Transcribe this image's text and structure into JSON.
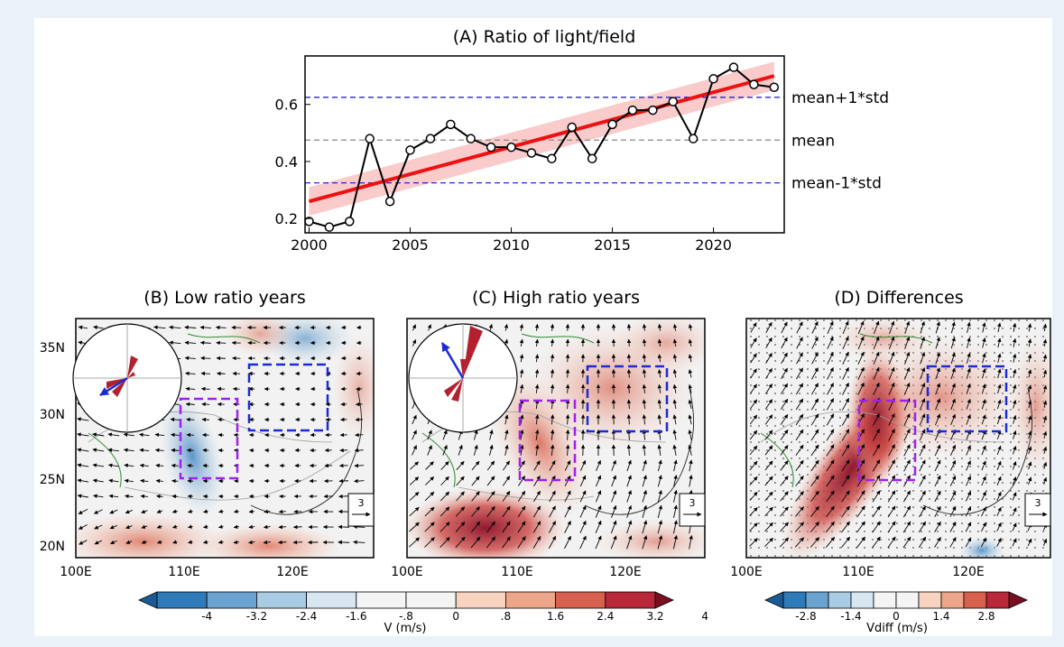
{
  "chart_data": [
    {
      "type": "line",
      "title": "(A) Ratio of light/field",
      "xlabel": "",
      "ylabel": "",
      "x": [
        2000,
        2001,
        2002,
        2003,
        2004,
        2005,
        2006,
        2007,
        2008,
        2009,
        2010,
        2011,
        2012,
        2013,
        2014,
        2015,
        2016,
        2017,
        2018,
        2019,
        2020,
        2021,
        2022,
        2023
      ],
      "series": [
        {
          "values": [
            0.19,
            0.17,
            0.19,
            0.48,
            0.26,
            0.44,
            0.48,
            0.53,
            0.48,
            0.45,
            0.45,
            0.43,
            0.41,
            0.52,
            0.41,
            0.53,
            0.58,
            0.58,
            0.61,
            0.48,
            0.69,
            0.73,
            0.67,
            0.66
          ]
        }
      ],
      "trend": {
        "start": [
          2000,
          0.26
        ],
        "end": [
          2023,
          0.7
        ]
      },
      "ref_lines": [
        {
          "label": "mean+1*std",
          "value": 0.625,
          "color": "#1010cc"
        },
        {
          "label": "mean",
          "value": 0.475,
          "color": "#888888"
        },
        {
          "label": "mean-1*std",
          "value": 0.325,
          "color": "#1010cc"
        }
      ],
      "xticks": [
        "2000",
        "2005",
        "2010",
        "2015",
        "2020"
      ],
      "xtick_values": [
        2000,
        2005,
        2010,
        2015,
        2020
      ],
      "yticks": [
        "0.2",
        "0.4",
        "0.6"
      ],
      "ytick_values": [
        0.2,
        0.4,
        0.6
      ],
      "xlim": [
        1999.8,
        2023.5
      ],
      "ylim": [
        0.15,
        0.77
      ],
      "colors": {
        "line": "#000000",
        "trend": "#ee1111",
        "band": "#f7b9b9"
      }
    },
    {
      "type": "heatmap",
      "title": "(B) Low ratio years",
      "lon_ticks": [
        "100E",
        "110E",
        "120E"
      ],
      "lat_ticks": [
        "35N",
        "30N",
        "25N",
        "20N"
      ],
      "ref_vector": "3",
      "wind_rose_arrow": "west-southwest"
    },
    {
      "type": "heatmap",
      "title": "(C) High ratio years",
      "lon_ticks": [
        "100E",
        "110E",
        "120E"
      ],
      "ref_vector": "3",
      "wind_rose_arrow": "north-northwest"
    },
    {
      "type": "heatmap",
      "title": "(D) Differences",
      "lon_ticks": [
        "100E",
        "110E",
        "120E"
      ],
      "ref_vector": "3"
    }
  ],
  "colorbars": [
    {
      "label": "V (m/s)",
      "ticks": [
        "-4",
        "-3.2",
        "-2.4",
        "-1.6",
        "-.8",
        "0",
        ".8",
        "1.6",
        "2.4",
        "3.2",
        "4"
      ],
      "colors": [
        "#1a5b95",
        "#2f7ab8",
        "#6aa3cf",
        "#a9cbe3",
        "#d7e6f0",
        "#f4f4f4",
        "#f4f4f4",
        "#f8d3c0",
        "#eda68a",
        "#d8604e",
        "#b8283a",
        "#7a0f22"
      ]
    },
    {
      "label": "Vdiff (m/s)",
      "ticks": [
        "-2.8",
        "-1.4",
        "0",
        "1.4",
        "2.8"
      ],
      "colors": [
        "#1a5b95",
        "#2f7ab8",
        "#6aa3cf",
        "#a9cbe3",
        "#d7e6f0",
        "#f4f4f4",
        "#f4f4f4",
        "#f8d3c0",
        "#eda68a",
        "#d8604e",
        "#b8283a",
        "#7a0f22"
      ]
    }
  ]
}
